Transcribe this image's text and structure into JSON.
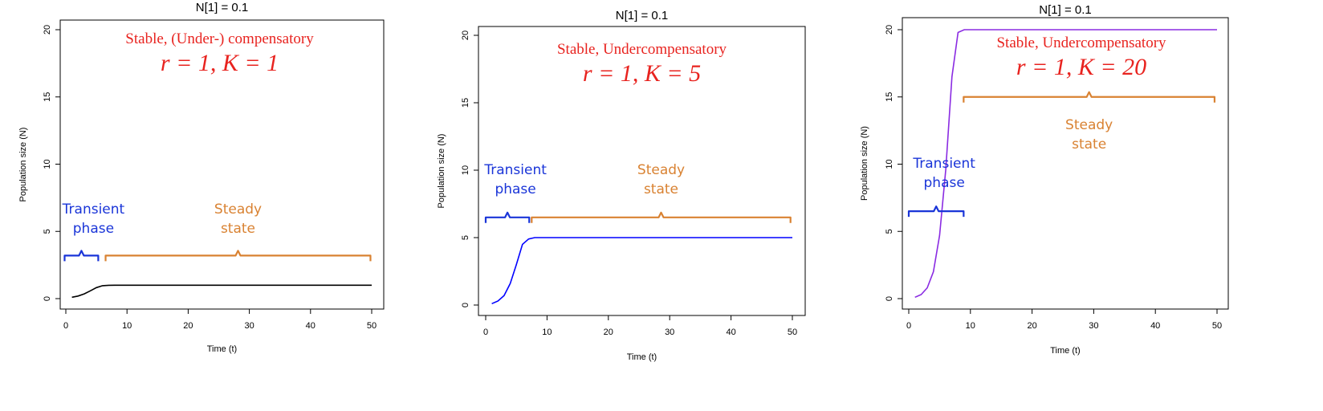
{
  "chart_data": [
    {
      "type": "line",
      "title": "N[1] = 0.1",
      "xlabel": "Time (t)",
      "ylabel": "Population size (N)",
      "xlim": [
        0,
        50
      ],
      "ylim": [
        0,
        20
      ],
      "xticks": [
        0,
        10,
        20,
        30,
        40,
        50
      ],
      "yticks": [
        0,
        5,
        10,
        15,
        20
      ],
      "grid": false,
      "series": [
        {
          "color": "#000000",
          "x": [
            1,
            2,
            3,
            4,
            5,
            6,
            7,
            8,
            9,
            10,
            15,
            20,
            25,
            30,
            35,
            40,
            45,
            50
          ],
          "y": [
            0.1,
            0.19,
            0.35,
            0.58,
            0.82,
            0.96,
            0.99,
            1,
            1,
            1,
            1,
            1,
            1,
            1,
            1,
            1,
            1,
            1
          ]
        }
      ],
      "annotations": {
        "heading": "Stable, (Under-) compensatory",
        "params": "r = 1, K = 1",
        "transient_label": [
          "Transient",
          "phase"
        ],
        "steady_label": [
          "Steady",
          "state"
        ],
        "transient_range": [
          -0.2,
          5.3
        ],
        "steady_range": [
          6.5,
          49.8
        ],
        "brace_y": 3.2
      }
    },
    {
      "type": "line",
      "title": "N[1] = 0.1",
      "xlabel": "Time (t)",
      "ylabel": "Population size (N)",
      "xlim": [
        0,
        50
      ],
      "ylim": [
        0,
        20
      ],
      "xticks": [
        0,
        10,
        20,
        30,
        40,
        50
      ],
      "yticks": [
        0,
        5,
        10,
        15,
        20
      ],
      "grid": false,
      "series": [
        {
          "color": "#0000FF",
          "x": [
            1,
            2,
            3,
            4,
            5,
            6,
            7,
            8,
            9,
            10,
            15,
            20,
            25,
            30,
            35,
            40,
            45,
            50
          ],
          "y": [
            0.1,
            0.3,
            0.7,
            1.6,
            3.0,
            4.5,
            4.9,
            5,
            5,
            5,
            5,
            5,
            5,
            5,
            5,
            5,
            5,
            5
          ]
        }
      ],
      "annotations": {
        "heading": "Stable, Undercompensatory",
        "params": "r = 1, K = 5",
        "transient_label": [
          "Transient",
          "phase"
        ],
        "steady_label": [
          "Steady",
          "state"
        ],
        "transient_range": [
          0,
          7.1
        ],
        "steady_range": [
          7.5,
          49.7
        ],
        "brace_y": 6.5
      }
    },
    {
      "type": "line",
      "title": "N[1] = 0.1",
      "xlabel": "Time (t)",
      "ylabel": "Population size (N)",
      "xlim": [
        0,
        50
      ],
      "ylim": [
        0,
        20
      ],
      "xticks": [
        0,
        10,
        20,
        30,
        40,
        50
      ],
      "yticks": [
        0,
        5,
        10,
        15,
        20
      ],
      "grid": false,
      "series": [
        {
          "color": "#8A2BE2",
          "x": [
            1,
            2,
            3,
            4,
            5,
            6,
            7,
            8,
            9,
            10,
            15,
            20,
            25,
            30,
            35,
            40,
            45,
            50
          ],
          "y": [
            0.1,
            0.3,
            0.8,
            2.0,
            4.7,
            9.6,
            16.5,
            19.8,
            20,
            20,
            20,
            20,
            20,
            20,
            20,
            20,
            20,
            20
          ]
        }
      ],
      "annotations": {
        "heading": "Stable, Undercompensatory",
        "params": "r = 1, K = 20",
        "transient_label": [
          "Transient",
          "phase"
        ],
        "steady_label": [
          "Steady",
          "state"
        ],
        "transient_range": [
          0,
          8.9
        ],
        "steady_range": [
          8.9,
          49.6
        ],
        "brace_y": 15,
        "brace_y_transient": 6.5
      }
    }
  ],
  "colors": {
    "heading": "#E8231F",
    "transient": "#1A35D8",
    "steady": "#D98232",
    "axis": "#000000"
  }
}
